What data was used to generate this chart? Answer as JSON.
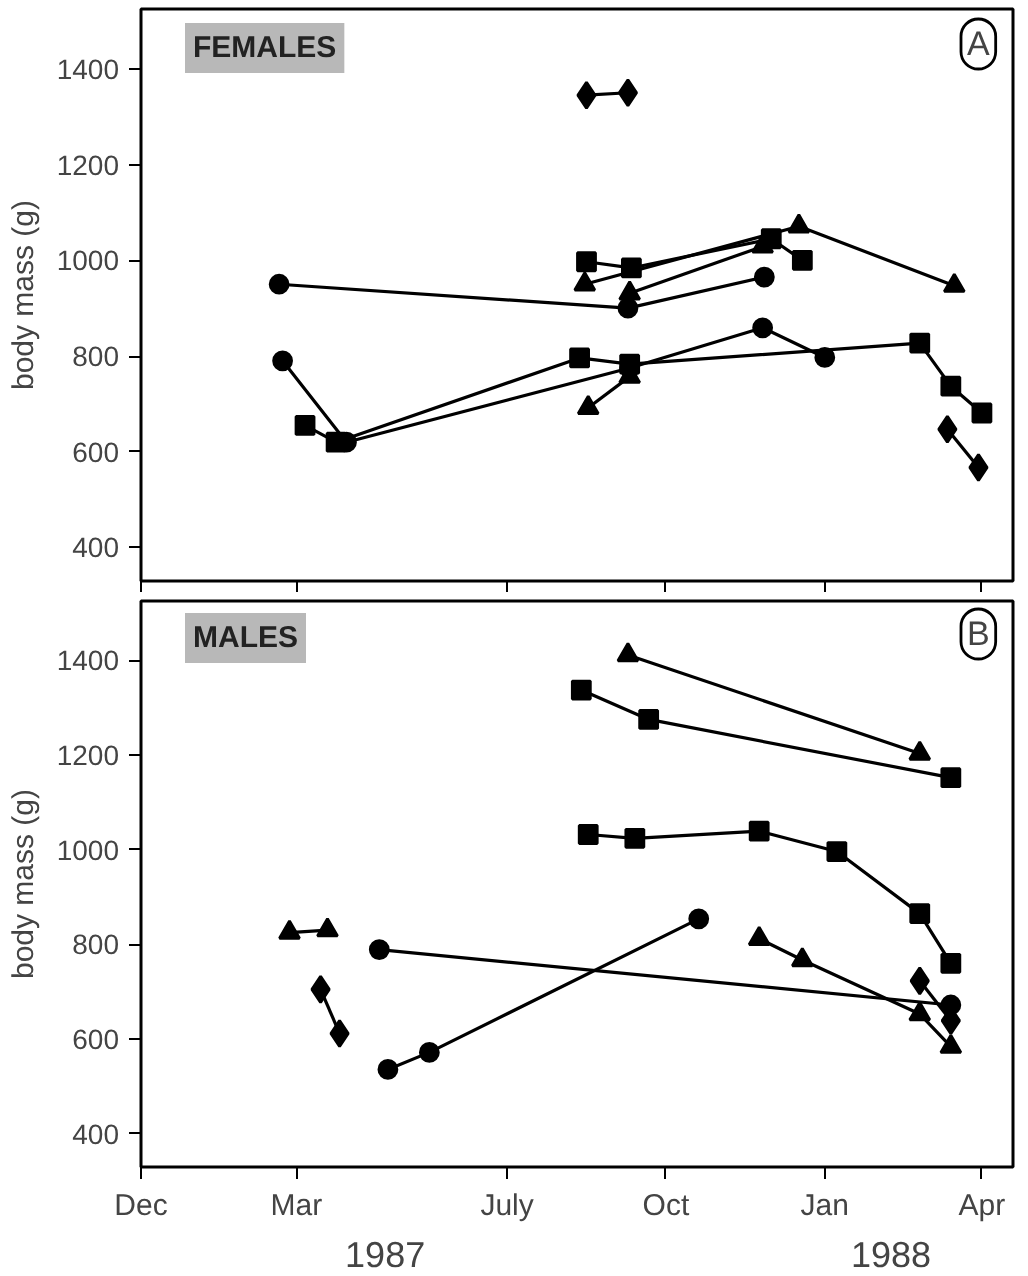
{
  "chart_data": [
    {
      "type": "line",
      "title": "FEMALES",
      "ylabel": "body mass (g)",
      "annotations": [
        "A"
      ],
      "xlim": [
        "1986-12-01",
        "1988-04-19"
      ],
      "xticks": [
        {
          "value": "1986-12-01",
          "label": null
        },
        {
          "value": "1987-03-01",
          "label": null
        },
        {
          "value": "1987-07-01",
          "label": null
        },
        {
          "value": "1987-10-01",
          "label": null
        },
        {
          "value": "1988-01-01",
          "label": null
        },
        {
          "value": "1988-04-01",
          "label": null
        }
      ],
      "ylim": [
        330,
        1525
      ],
      "yticks": [
        400,
        600,
        800,
        1000,
        1200,
        1400
      ],
      "tick_labels": "y",
      "series": [
        {
          "color": "#000000",
          "marker": "diamond",
          "x": [
            "1987-08-16",
            "1987-09-09"
          ],
          "values": [
            1345,
            1350
          ]
        },
        {
          "color": "#000000",
          "marker": "square",
          "x": [
            "1987-08-16",
            "1987-09-11",
            "1987-12-01",
            "1987-12-19"
          ],
          "values": [
            997,
            984,
            1045,
            1000
          ]
        },
        {
          "color": "#000000",
          "marker": "triangle",
          "x": [
            "1987-08-15",
            "1987-12-17",
            "1988-03-16"
          ],
          "values": [
            950,
            1071,
            947
          ]
        },
        {
          "color": "#000000",
          "marker": "triangle",
          "x": [
            "1987-09-10",
            "1987-11-26"
          ],
          "values": [
            931,
            1029
          ]
        },
        {
          "color": "#000000",
          "marker": "circle",
          "x": [
            "1987-02-19",
            "1987-09-09",
            "1987-11-27"
          ],
          "values": [
            950,
            900,
            965
          ]
        },
        {
          "color": "#000000",
          "marker": "circle",
          "x": [
            "1987-02-21",
            "1987-03-30",
            "1987-09-10",
            "1987-11-26",
            "1988-01-01"
          ],
          "values": [
            790,
            620,
            775,
            859,
            797
          ]
        },
        {
          "color": "#000000",
          "marker": "square",
          "x": [
            "1987-03-06",
            "1987-03-24",
            "1987-08-12",
            "1987-09-10",
            "1988-02-25",
            "1988-03-14",
            "1988-04-01"
          ],
          "values": [
            655,
            620,
            796,
            783,
            827,
            737,
            681
          ]
        },
        {
          "color": "#000000",
          "marker": "triangle",
          "x": [
            "1987-08-17",
            "1987-09-10"
          ],
          "values": [
            692,
            757
          ]
        },
        {
          "color": "#000000",
          "marker": "diamond",
          "x": [
            "1988-03-12",
            "1988-03-30"
          ],
          "values": [
            647,
            567
          ]
        }
      ]
    },
    {
      "type": "line",
      "title": "MALES",
      "ylabel": "body mass (g)",
      "annotations": [
        "B",
        "1987",
        "1988"
      ],
      "xlim": [
        "1986-12-01",
        "1988-04-19"
      ],
      "xticks": [
        {
          "value": "1986-12-01",
          "label": "Dec"
        },
        {
          "value": "1987-03-01",
          "label": "Mar"
        },
        {
          "value": "1987-07-01",
          "label": "July"
        },
        {
          "value": "1987-10-01",
          "label": "Oct"
        },
        {
          "value": "1988-01-01",
          "label": "Jan"
        },
        {
          "value": "1988-04-01",
          "label": "Apr"
        }
      ],
      "ylim": [
        330,
        1525
      ],
      "yticks": [
        400,
        600,
        800,
        1000,
        1200,
        1400
      ],
      "series": [
        {
          "color": "#000000",
          "marker": "triangle",
          "x": [
            "1987-09-09",
            "1988-02-25"
          ],
          "values": [
            1411,
            1203
          ]
        },
        {
          "color": "#000000",
          "marker": "square",
          "x": [
            "1987-08-13",
            "1987-09-21",
            "1988-03-14"
          ],
          "values": [
            1337,
            1275,
            1152
          ]
        },
        {
          "color": "#000000",
          "marker": "square",
          "x": [
            "1987-08-17",
            "1987-09-13",
            "1987-11-24",
            "1988-01-08",
            "1988-02-25",
            "1988-03-14"
          ],
          "values": [
            1032,
            1024,
            1039,
            996,
            865,
            760
          ]
        },
        {
          "color": "#000000",
          "marker": "circle",
          "x": [
            "1987-04-23",
            "1987-05-17",
            "1987-10-20"
          ],
          "values": [
            536,
            572,
            854
          ]
        },
        {
          "color": "#000000",
          "marker": "triangle",
          "x": [
            "1987-02-25",
            "1987-03-19"
          ],
          "values": [
            825,
            830
          ]
        },
        {
          "color": "#000000",
          "marker": "diamond",
          "x": [
            "1987-03-15",
            "1987-03-26"
          ],
          "values": [
            705,
            612
          ]
        },
        {
          "color": "#000000",
          "marker": "circle",
          "x": [
            "1987-04-18",
            "1988-03-14"
          ],
          "values": [
            789,
            672
          ]
        },
        {
          "color": "#000000",
          "marker": "triangle",
          "x": [
            "1987-11-24",
            "1987-12-19",
            "1988-02-25",
            "1988-03-14"
          ],
          "values": [
            812,
            767,
            653,
            584
          ]
        },
        {
          "color": "#000000",
          "marker": "diamond",
          "x": [
            "1988-02-25",
            "1988-03-14"
          ],
          "values": [
            723,
            639
          ]
        }
      ]
    }
  ]
}
